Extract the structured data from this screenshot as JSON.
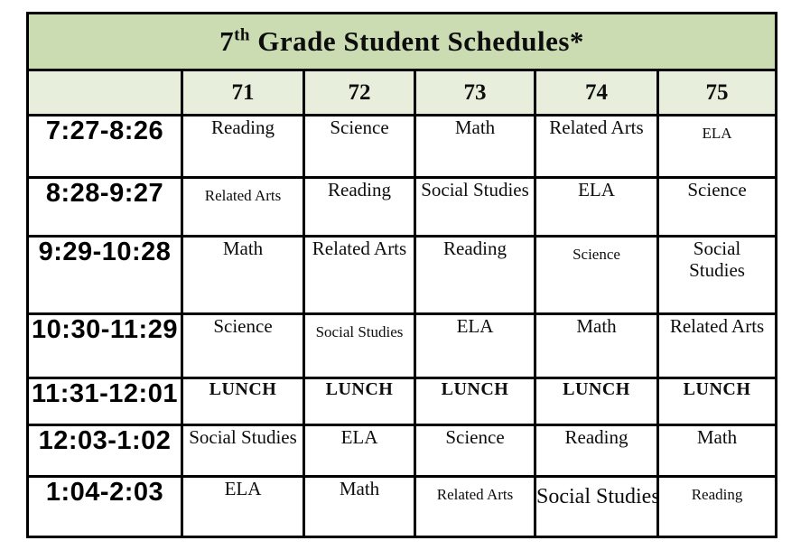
{
  "title": {
    "prefix": "7",
    "superscript": "th",
    "rest": " Grade Student Schedules*"
  },
  "columns": [
    "71",
    "72",
    "73",
    "74",
    "75"
  ],
  "rows": [
    {
      "time": "7:27-8:26",
      "cells": [
        "Reading",
        "Science",
        "Math",
        "Related Arts",
        "ELA"
      ]
    },
    {
      "time": "8:28-9:27",
      "cells": [
        "Related Arts",
        "Reading",
        "Social Studies",
        "ELA",
        "Science"
      ]
    },
    {
      "time": "9:29-10:28",
      "cells": [
        "Math",
        "Related Arts",
        "Reading",
        "Science",
        "Social Studies"
      ]
    },
    {
      "time": "10:30-11:29",
      "cells": [
        "Science",
        "Social Studies",
        "ELA",
        "Math",
        "Related Arts"
      ]
    },
    {
      "time": "11:31-12:01",
      "cells": [
        "LUNCH",
        "LUNCH",
        "LUNCH",
        "LUNCH",
        "LUNCH"
      ]
    },
    {
      "time": "12:03-1:02",
      "cells": [
        "Social Studies",
        "ELA",
        "Science",
        "Reading",
        "Math"
      ]
    },
    {
      "time": "1:04-2:03",
      "cells": [
        "ELA",
        "Math",
        "Related Arts",
        "Social Studies",
        "Reading"
      ]
    }
  ],
  "colors": {
    "title_background": "#cbdbb2",
    "header_background": "#e7efdc",
    "cell_background": "#ffffff",
    "border": "#000000",
    "text": "#0d0d0d"
  }
}
